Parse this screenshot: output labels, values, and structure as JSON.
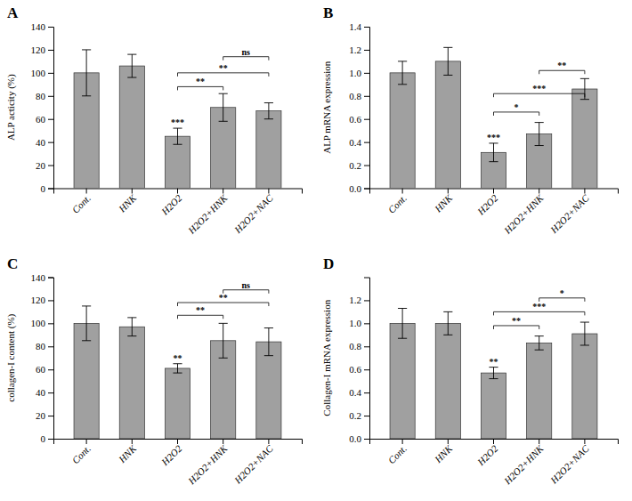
{
  "chart_data": [
    {
      "type": "bar",
      "title": "A",
      "ylabel": "ALP acticity (%)",
      "color": "#a0a0a0",
      "grid": false,
      "categories": [
        "Cont.",
        "HNK",
        "H2O2",
        "H2O2+HNK",
        "H2O2+NAC"
      ],
      "ylim": [
        0,
        140
      ],
      "yticks": [
        0,
        20,
        40,
        60,
        80,
        100,
        120,
        140
      ],
      "values": [
        100,
        106,
        45,
        70,
        67
      ],
      "errors": [
        20,
        10,
        7,
        12,
        7
      ],
      "bar_annotations": [
        null,
        null,
        "***",
        null,
        null
      ],
      "sig_lines": [
        {
          "from": "H2O2",
          "to": "H2O2+HNK",
          "y": 88,
          "label": "**"
        },
        {
          "from": "H2O2",
          "to": "H2O2+NAC",
          "y": 100,
          "label": "**"
        },
        {
          "from": "H2O2+HNK",
          "to": "H2O2+NAC",
          "y": 114,
          "label": "ns"
        }
      ]
    },
    {
      "type": "bar",
      "title": "B",
      "ylabel": "ALP mRNA expression",
      "color": "#a0a0a0",
      "grid": false,
      "categories": [
        "Cont.",
        "HNK",
        "H2O2",
        "H2O2+HNK",
        "H2O2+NAC"
      ],
      "ylim": [
        0,
        1.4
      ],
      "yticks": [
        {
          "value": 0,
          "label": "0.0"
        },
        0.2,
        0.4,
        0.6,
        0.8,
        {
          "value": 1.0,
          "label": "1.0"
        },
        1.2,
        1.4
      ],
      "values": [
        1.0,
        1.1,
        0.31,
        0.47,
        0.86
      ],
      "errors": [
        0.1,
        0.12,
        0.08,
        0.1,
        0.09
      ],
      "bar_annotations": [
        null,
        null,
        "***",
        null,
        null
      ],
      "sig_lines": [
        {
          "from": "H2O2",
          "to": "H2O2+HNK",
          "y": 0.66,
          "label": "*"
        },
        {
          "from": "H2O2",
          "to": "H2O2+NAC",
          "y": 0.82,
          "label": "***"
        },
        {
          "from": "H2O2+HNK",
          "to": "H2O2+NAC",
          "y": 1.02,
          "label": "**"
        }
      ]
    },
    {
      "type": "bar",
      "title": "C",
      "ylabel": "collagen-I content (%)",
      "color": "#a0a0a0",
      "grid": false,
      "categories": [
        "Cont.",
        "HNK",
        "H2O2",
        "H2O2+HNK",
        "H2O2+NAC"
      ],
      "ylim": [
        0,
        140
      ],
      "yticks": [
        0,
        20,
        40,
        60,
        80,
        100,
        120,
        140
      ],
      "values": [
        100,
        97,
        61,
        85,
        84
      ],
      "errors": [
        15,
        8,
        4,
        15,
        12
      ],
      "bar_annotations": [
        null,
        null,
        "**",
        null,
        null
      ],
      "sig_lines": [
        {
          "from": "H2O2",
          "to": "H2O2+HNK",
          "y": 107,
          "label": "**"
        },
        {
          "from": "H2O2",
          "to": "H2O2+NAC",
          "y": 118,
          "label": "**"
        },
        {
          "from": "H2O2+HNK",
          "to": "H2O2+NAC",
          "y": 129,
          "label": "ns"
        }
      ]
    },
    {
      "type": "bar",
      "title": "D",
      "ylabel": "Collagen-I mRNA expression",
      "color": "#a0a0a0",
      "grid": false,
      "categories": [
        "Cont.",
        "HNK",
        "H2O2",
        "H2O2+HNK",
        "H2O2+NAC"
      ],
      "ylim": [
        0,
        1.4
      ],
      "yticks": [
        {
          "value": 0,
          "label": "0.0"
        },
        0.2,
        0.4,
        0.6,
        0.8,
        {
          "value": 1.0,
          "label": "1.0"
        },
        1.2
      ],
      "values": [
        1.0,
        1.0,
        0.57,
        0.83,
        0.91
      ],
      "errors": [
        0.13,
        0.1,
        0.05,
        0.06,
        0.1
      ],
      "bar_annotations": [
        null,
        null,
        "**",
        null,
        null
      ],
      "sig_lines": [
        {
          "from": "H2O2",
          "to": "H2O2+HNK",
          "y": 0.98,
          "label": "**"
        },
        {
          "from": "H2O2",
          "to": "H2O2+NAC",
          "y": 1.1,
          "label": "***"
        },
        {
          "from": "H2O2+HNK",
          "to": "H2O2+NAC",
          "y": 1.22,
          "label": "*"
        }
      ]
    }
  ]
}
